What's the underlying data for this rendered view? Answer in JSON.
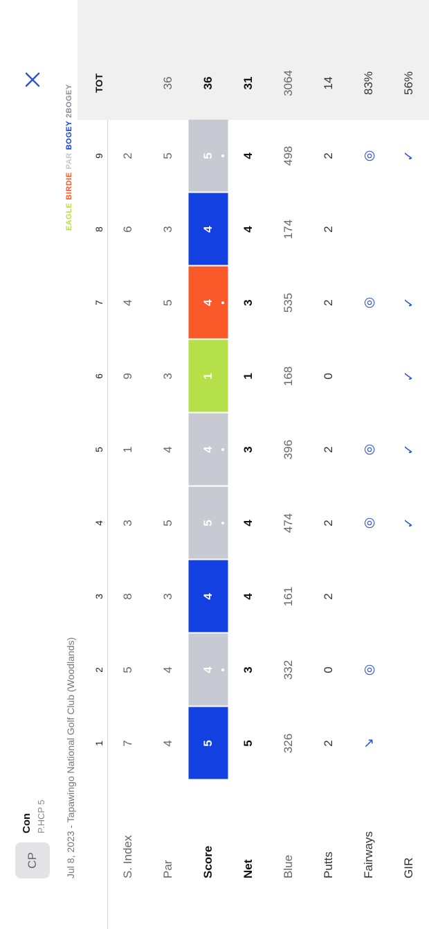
{
  "player": {
    "initials": "CP",
    "name": "Con",
    "handicap": "P.HCP 5"
  },
  "round": "Jul 8, 2023 - Tapawingo National Golf Club (Woodlands)",
  "legend": [
    {
      "label": "EAGLE",
      "color": "#b5e04a"
    },
    {
      "label": "BIRDIE",
      "color": "#fa5a2a"
    },
    {
      "label": "PAR",
      "color": "#c4c6cf"
    },
    {
      "label": "BOGEY",
      "color": "#1340e0"
    },
    {
      "label": "2BOGEY",
      "color": "#8a8d99"
    }
  ],
  "table": {
    "holes": [
      "1",
      "2",
      "3",
      "4",
      "5",
      "6",
      "7",
      "8",
      "9"
    ],
    "total_label": "TOT",
    "rows": [
      {
        "label": "S. Index",
        "values": [
          7,
          5,
          8,
          3,
          1,
          9,
          4,
          6,
          2
        ],
        "total": null
      },
      {
        "label": "Par",
        "values": [
          4,
          4,
          3,
          5,
          4,
          3,
          5,
          3,
          5
        ],
        "total": 36
      },
      {
        "label": "Score",
        "values": [
          5,
          4,
          4,
          5,
          4,
          1,
          4,
          4,
          5
        ],
        "total": 36,
        "colors": [
          "#1340e0",
          "#c8cad3",
          "#1340e0",
          "#c8cad3",
          "#c8cad3",
          "#b5e04a",
          "#fa5a2a",
          "#1340e0",
          "#c8cad3"
        ],
        "dots": [
          false,
          true,
          false,
          true,
          true,
          false,
          true,
          false,
          true
        ]
      },
      {
        "label": "Net",
        "values": [
          5,
          3,
          4,
          4,
          3,
          1,
          3,
          4,
          4
        ],
        "total": 31
      },
      {
        "label": "Blue",
        "values": [
          326,
          332,
          161,
          474,
          396,
          168,
          535,
          174,
          498
        ],
        "total": 3064
      },
      {
        "label": "Putts",
        "values": [
          2,
          0,
          2,
          2,
          2,
          0,
          2,
          2,
          2
        ],
        "total": 14
      },
      {
        "label": "Fairways",
        "values": [
          "↘",
          "◎",
          null,
          "◎",
          "◎",
          null,
          "◎",
          null,
          "◎"
        ],
        "total": "83%"
      },
      {
        "label": "GIR",
        "values": [
          null,
          null,
          null,
          "✓",
          "✓",
          "✓",
          "✓",
          null,
          "✓"
        ],
        "total": "56%"
      }
    ]
  }
}
